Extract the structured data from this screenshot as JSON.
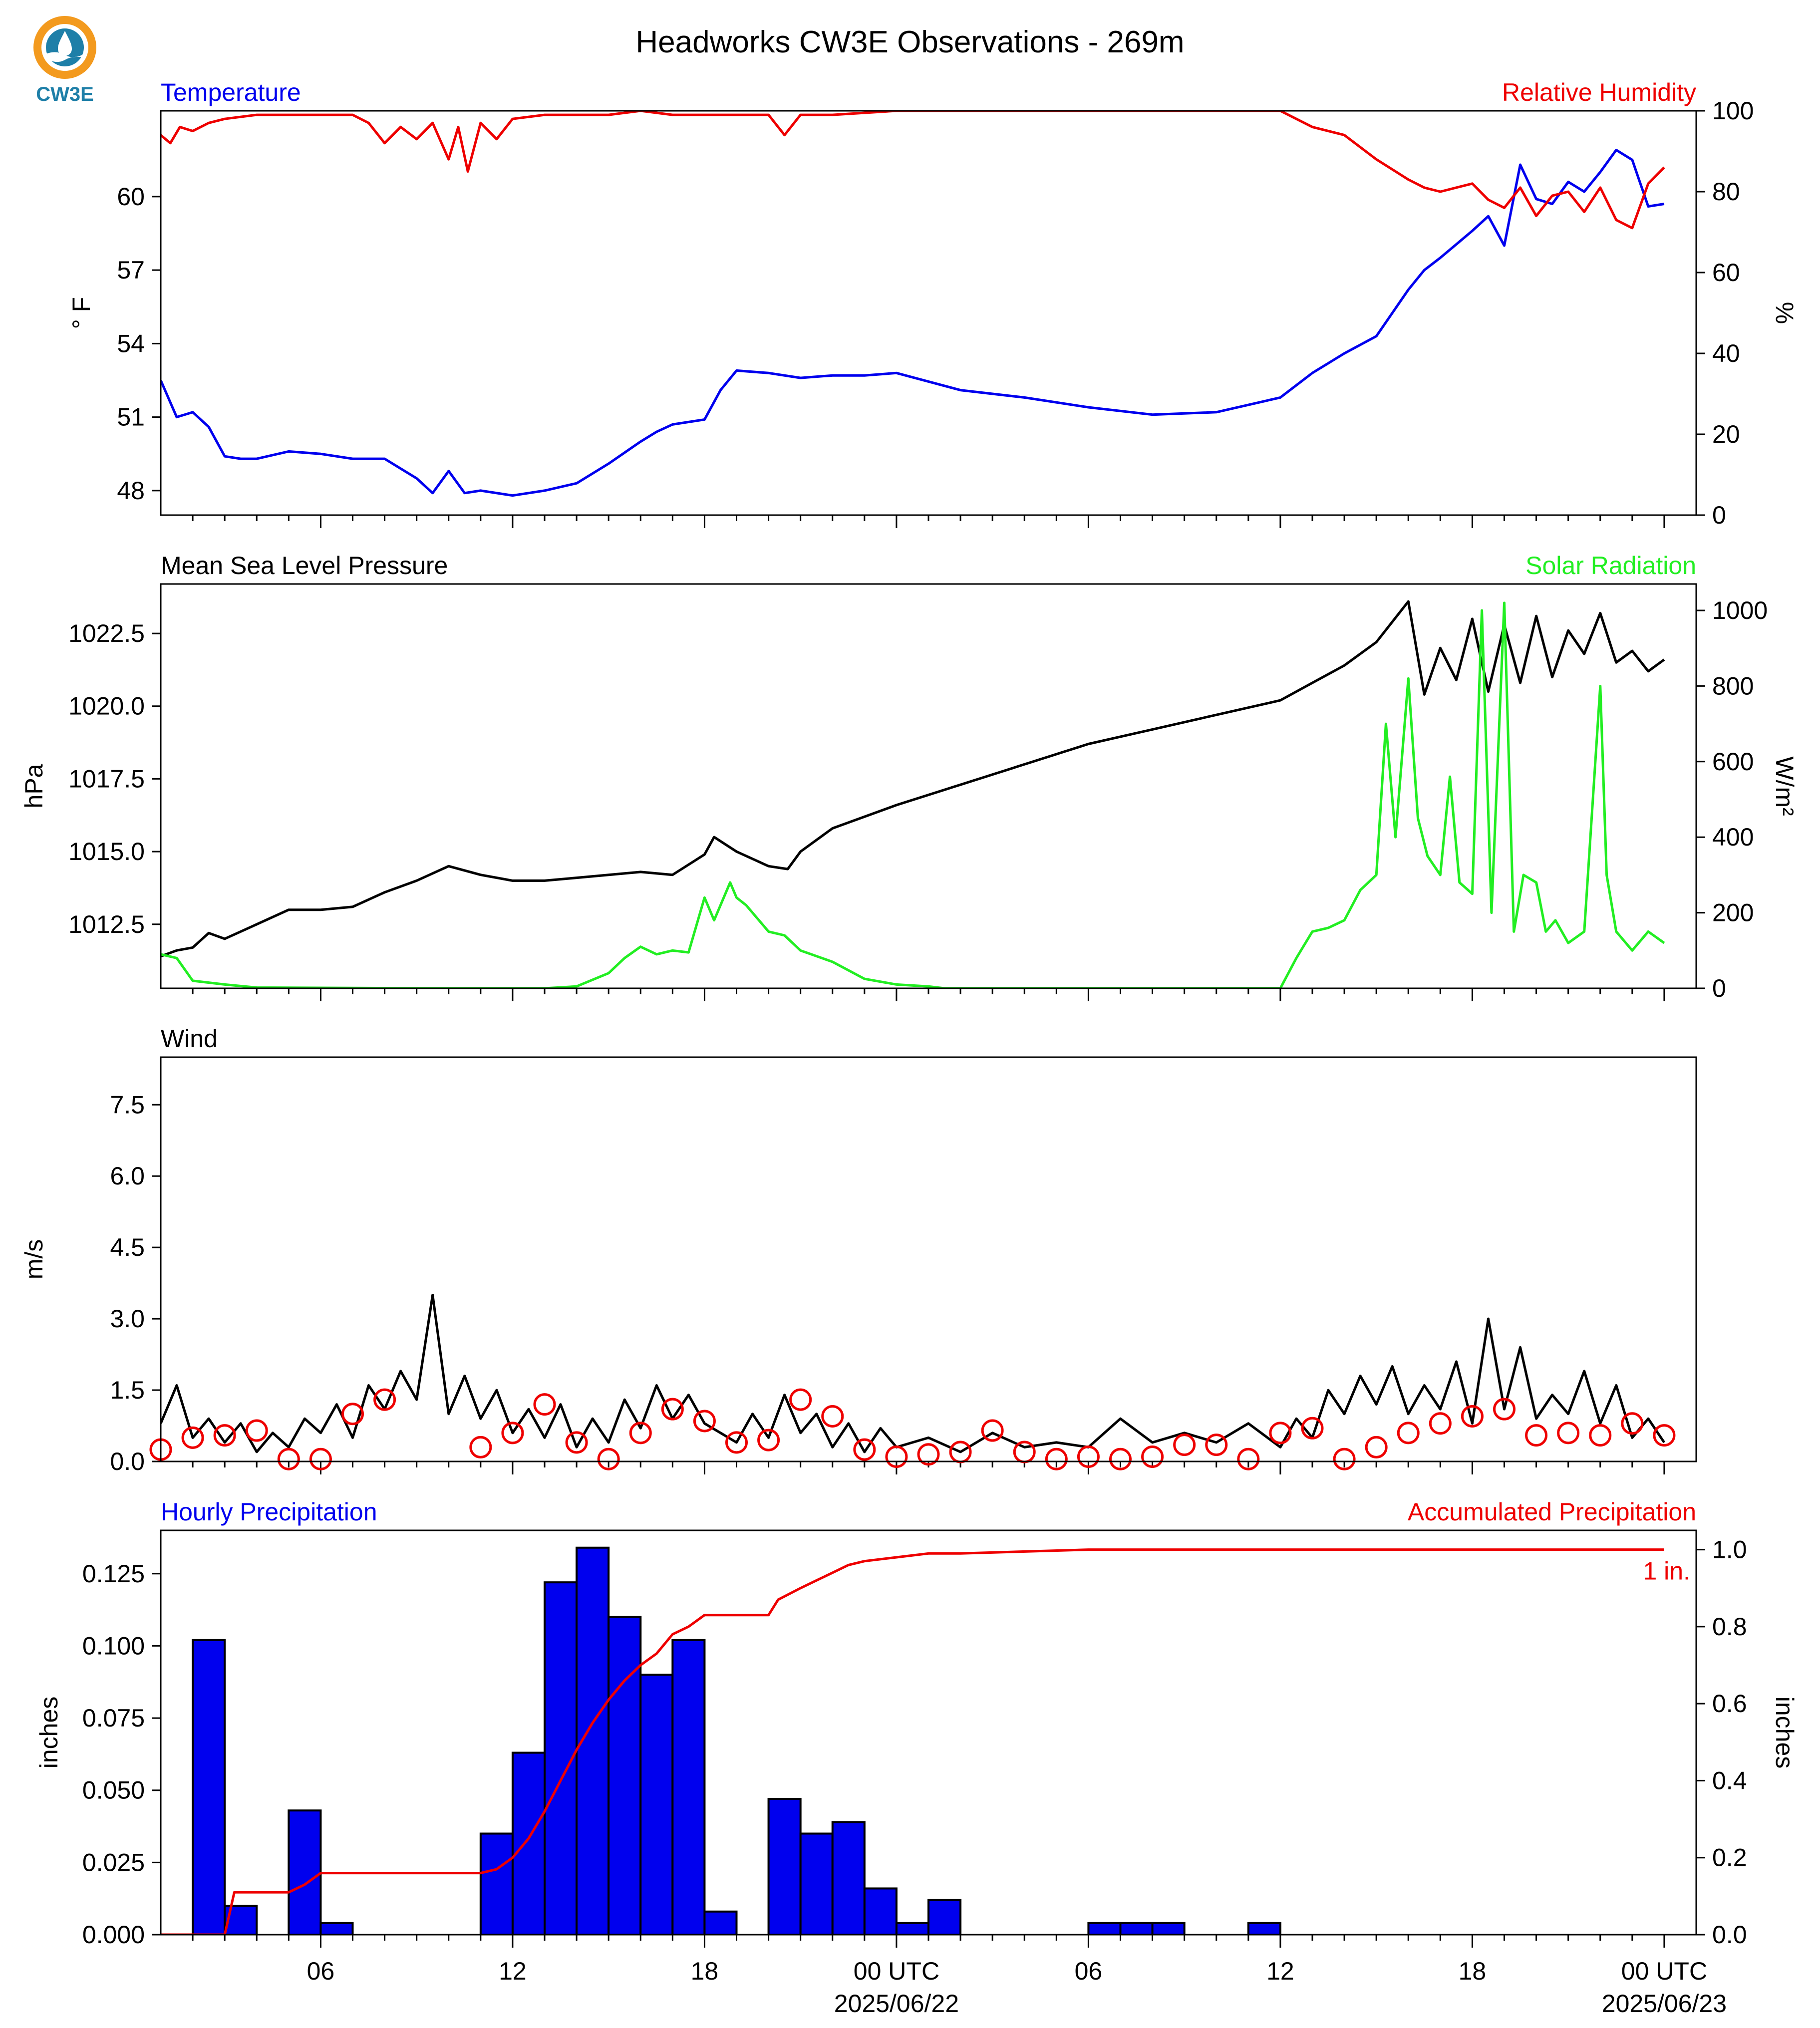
{
  "title": "Headworks CW3E Observations - 269m",
  "logo_text": "CW3E",
  "colors": {
    "temperature": "#0000ee",
    "humidity": "#ee0000",
    "pressure": "#000000",
    "solar": "#22ee22",
    "wind": "#000000",
    "wind_marker": "#ee0000",
    "precip_bar": "#0000ee",
    "accum": "#ee0000",
    "logo_orange": "#f39a1e",
    "logo_teal": "#1e7fa8"
  },
  "x_ticks": {
    "label_hours": [
      6,
      12,
      18,
      24,
      30,
      36,
      42,
      48
    ],
    "labels": [
      "06",
      "12",
      "18",
      "00 UTC",
      "06",
      "12",
      "18",
      "00 UTC"
    ],
    "date_labels": [
      {
        "hour": 24,
        "text": "2025/06/22"
      },
      {
        "hour": 48,
        "text": "2025/06/23"
      }
    ]
  },
  "chart_data": [
    {
      "id": "temp_rh",
      "type": "line",
      "left_title": "Temperature",
      "right_title": "Relative Humidity",
      "ylabel_left": "° F",
      "ylabel_right": "%",
      "ylim_left": [
        47,
        63.5
      ],
      "yticks_left": [
        "48",
        "51",
        "54",
        "57",
        "60"
      ],
      "ytick_values_left": [
        48,
        51,
        54,
        57,
        60
      ],
      "ylim_right": [
        0,
        100
      ],
      "yticks_right": [
        "0",
        "20",
        "40",
        "60",
        "80",
        "100"
      ],
      "ytick_values_right": [
        0,
        20,
        40,
        60,
        80,
        100
      ],
      "xlim_hours": [
        1,
        49
      ],
      "series": [
        {
          "axis": "left",
          "color_key": "temperature",
          "x": [
            1,
            1.5,
            2,
            2.5,
            3,
            3.5,
            4,
            5,
            6,
            7,
            8,
            8.5,
            9,
            9.5,
            10,
            10.5,
            11,
            12,
            13,
            14,
            15,
            16,
            16.5,
            17,
            18,
            18.5,
            19,
            20,
            21,
            22,
            23,
            24,
            26,
            28,
            30,
            32,
            34,
            36,
            37,
            38,
            39,
            40,
            40.5,
            41,
            42,
            42.5,
            43,
            43.5,
            44,
            44.5,
            45,
            45.5,
            46,
            46.5,
            47,
            47.5,
            48
          ],
          "y": [
            52.5,
            51,
            51.2,
            50.6,
            49.4,
            49.3,
            49.3,
            49.6,
            49.5,
            49.3,
            49.3,
            48.9,
            48.5,
            47.9,
            48.8,
            47.9,
            48.0,
            47.8,
            48.0,
            48.3,
            49.1,
            50.0,
            50.4,
            50.7,
            50.9,
            52.1,
            52.9,
            52.8,
            52.6,
            52.7,
            52.7,
            52.8,
            52.1,
            51.8,
            51.4,
            51.1,
            51.2,
            51.8,
            52.8,
            53.6,
            54.3,
            56.2,
            57.0,
            57.5,
            58.6,
            59.2,
            58.0,
            61.3,
            59.9,
            59.7,
            60.6,
            60.2,
            61.0,
            61.9,
            61.5,
            59.6,
            59.7
          ]
        },
        {
          "axis": "right",
          "color_key": "humidity",
          "x": [
            1,
            1.3,
            1.6,
            2,
            2.5,
            3,
            4,
            5,
            6,
            7,
            7.5,
            8,
            8.5,
            9,
            9.5,
            10,
            10.3,
            10.6,
            11,
            11.5,
            12,
            13,
            14,
            15,
            16,
            17,
            18,
            19,
            20,
            20.5,
            21,
            22,
            24,
            26,
            28,
            30,
            32,
            34,
            35,
            36,
            37,
            38,
            39,
            40,
            40.5,
            41,
            42,
            42.5,
            43,
            43.5,
            44,
            44.5,
            45,
            45.5,
            46,
            46.5,
            47,
            47.5,
            48
          ],
          "y": [
            94,
            92,
            96,
            95,
            97,
            98,
            99,
            99,
            99,
            99,
            97,
            92,
            96,
            93,
            97,
            88,
            96,
            85,
            97,
            93,
            98,
            99,
            99,
            99,
            100,
            99,
            99,
            99,
            99,
            94,
            99,
            99,
            100,
            100,
            100,
            100,
            100,
            100,
            100,
            100,
            96,
            94,
            88,
            83,
            81,
            80,
            82,
            78,
            76,
            81,
            74,
            79,
            80,
            75,
            81,
            73,
            71,
            82,
            86
          ]
        }
      ]
    },
    {
      "id": "pressure_solar",
      "type": "line",
      "left_title": "Mean Sea Level Pressure",
      "right_title": "Solar Radiation",
      "ylabel_left": "hPa",
      "ylabel_right": "W/m²",
      "ylim_left": [
        1010.3,
        1024.2
      ],
      "yticks_left": [
        "1012.5",
        "1015.0",
        "1017.5",
        "1020.0",
        "1022.5"
      ],
      "ytick_values_left": [
        1012.5,
        1015.0,
        1017.5,
        1020.0,
        1022.5
      ],
      "ylim_right": [
        0,
        1070
      ],
      "yticks_right": [
        "0",
        "200",
        "400",
        "600",
        "800",
        "1000"
      ],
      "ytick_values_right": [
        0,
        200,
        400,
        600,
        800,
        1000
      ],
      "xlim_hours": [
        1,
        49
      ],
      "series": [
        {
          "axis": "left",
          "color_key": "pressure",
          "x": [
            1,
            1.5,
            2,
            2.5,
            3,
            4,
            5,
            6,
            7,
            8,
            9,
            10,
            11,
            12,
            13,
            14,
            15,
            16,
            17,
            18,
            18.3,
            19,
            20,
            20.6,
            21,
            22,
            24,
            26,
            28,
            30,
            32,
            34,
            36,
            37,
            38,
            39,
            40,
            40.5,
            41,
            41.5,
            42,
            42.5,
            43,
            43.5,
            44,
            44.5,
            45,
            45.5,
            46,
            46.5,
            47,
            47.5,
            48
          ],
          "y": [
            1011.4,
            1011.6,
            1011.7,
            1012.2,
            1012.0,
            1012.5,
            1013.0,
            1013.0,
            1013.1,
            1013.6,
            1014.0,
            1014.5,
            1014.2,
            1014.0,
            1014.0,
            1014.1,
            1014.2,
            1014.3,
            1014.2,
            1014.9,
            1015.5,
            1015.0,
            1014.5,
            1014.4,
            1015.0,
            1015.8,
            1016.6,
            1017.3,
            1018.0,
            1018.7,
            1019.2,
            1019.7,
            1020.2,
            1020.8,
            1021.4,
            1022.2,
            1023.6,
            1020.4,
            1022.0,
            1020.9,
            1023.0,
            1020.5,
            1022.8,
            1020.8,
            1023.1,
            1021.0,
            1022.6,
            1021.8,
            1023.2,
            1021.5,
            1021.9,
            1021.2,
            1021.6
          ]
        },
        {
          "axis": "right",
          "color_key": "solar",
          "x": [
            1,
            1.5,
            2,
            3,
            4,
            10,
            13,
            14,
            15,
            15.5,
            16,
            16.5,
            17,
            17.5,
            18,
            18.3,
            18.8,
            19,
            19.3,
            20,
            20.5,
            21,
            22,
            23,
            24,
            25,
            25.5,
            26,
            27,
            36,
            36.5,
            37,
            37.5,
            38,
            38.5,
            39,
            39.3,
            39.6,
            40,
            40.3,
            40.6,
            41,
            41.3,
            41.6,
            42,
            42.3,
            42.6,
            43,
            43.3,
            43.6,
            44,
            44.3,
            44.6,
            45,
            45.5,
            46,
            46.2,
            46.5,
            47,
            47.5,
            48
          ],
          "y": [
            90,
            80,
            20,
            10,
            2,
            0,
            0,
            5,
            40,
            80,
            110,
            90,
            100,
            95,
            240,
            180,
            280,
            240,
            220,
            150,
            140,
            100,
            70,
            25,
            10,
            5,
            0,
            0,
            0,
            0,
            80,
            150,
            160,
            180,
            260,
            300,
            700,
            400,
            820,
            450,
            350,
            300,
            560,
            280,
            250,
            1000,
            200,
            1020,
            150,
            300,
            280,
            150,
            180,
            120,
            150,
            800,
            300,
            150,
            100,
            150,
            120
          ]
        }
      ]
    },
    {
      "id": "wind",
      "type": "line",
      "left_title": "Wind",
      "ylabel_left": "m/s",
      "ylim_left": [
        0,
        8.5
      ],
      "yticks_left": [
        "0.0",
        "1.5",
        "3.0",
        "4.5",
        "6.0",
        "7.5"
      ],
      "ytick_values_left": [
        0,
        1.5,
        3.0,
        4.5,
        6.0,
        7.5
      ],
      "xlim_hours": [
        1,
        49
      ],
      "series": [
        {
          "axis": "left",
          "color_key": "wind",
          "x": [
            1,
            1.5,
            2,
            2.5,
            3,
            3.5,
            4,
            4.5,
            5,
            5.5,
            6,
            6.5,
            7,
            7.5,
            8,
            8.5,
            9,
            9.5,
            10,
            10.5,
            11,
            11.5,
            12,
            12.5,
            13,
            13.5,
            14,
            14.5,
            15,
            15.5,
            16,
            16.5,
            17,
            17.5,
            18,
            18.5,
            19,
            19.5,
            20,
            20.5,
            21,
            21.5,
            22,
            22.5,
            23,
            23.5,
            24,
            25,
            26,
            27,
            28,
            29,
            30,
            31,
            32,
            33,
            34,
            35,
            36,
            36.5,
            37,
            37.5,
            38,
            38.5,
            39,
            39.5,
            40,
            40.5,
            41,
            41.5,
            42,
            42.5,
            43,
            43.5,
            44,
            44.5,
            45,
            45.5,
            46,
            46.5,
            47,
            47.5,
            48
          ],
          "y": [
            0.8,
            1.6,
            0.5,
            0.9,
            0.4,
            0.8,
            0.2,
            0.6,
            0.3,
            0.9,
            0.6,
            1.2,
            0.5,
            1.6,
            1.1,
            1.9,
            1.3,
            3.5,
            1.0,
            1.8,
            0.9,
            1.5,
            0.6,
            1.1,
            0.5,
            1.2,
            0.3,
            0.9,
            0.4,
            1.3,
            0.7,
            1.6,
            0.9,
            1.4,
            0.8,
            0.6,
            0.4,
            1.0,
            0.5,
            1.4,
            0.6,
            1.0,
            0.3,
            0.8,
            0.2,
            0.7,
            0.3,
            0.5,
            0.2,
            0.6,
            0.3,
            0.4,
            0.3,
            0.9,
            0.4,
            0.6,
            0.4,
            0.8,
            0.3,
            0.9,
            0.5,
            1.5,
            1.0,
            1.8,
            1.2,
            2.0,
            1.0,
            1.6,
            1.1,
            2.1,
            0.8,
            3.0,
            1.1,
            2.4,
            0.9,
            1.4,
            1.0,
            1.9,
            0.8,
            1.6,
            0.5,
            0.9,
            0.4
          ]
        }
      ],
      "markers_x": [
        1,
        2,
        3,
        4,
        5,
        6,
        7,
        8,
        11,
        12,
        13,
        14,
        15,
        16,
        17,
        18,
        19,
        20,
        21,
        22,
        23,
        24,
        25,
        26,
        27,
        28,
        29,
        30,
        31,
        32,
        33,
        34,
        35,
        36,
        37,
        38,
        39,
        40,
        41,
        42,
        43,
        44,
        45,
        46,
        47,
        48
      ],
      "markers_y": [
        0.25,
        0.5,
        0.55,
        0.65,
        0.05,
        0.05,
        1.0,
        1.3,
        0.3,
        0.6,
        1.2,
        0.4,
        0.05,
        0.6,
        1.1,
        0.85,
        0.4,
        0.45,
        1.3,
        0.95,
        0.25,
        0.1,
        0.15,
        0.2,
        0.65,
        0.2,
        0.05,
        0.1,
        0.05,
        0.1,
        0.35,
        0.35,
        0.05,
        0.6,
        0.7,
        0.05,
        0.3,
        0.6,
        0.8,
        0.95,
        1.1,
        0.55,
        0.6,
        0.55,
        0.8,
        0.55
      ]
    },
    {
      "id": "precip",
      "type": "bar",
      "left_title": "Hourly Precipitation",
      "right_title": "Accumulated Precipitation",
      "annotation": "1 in.",
      "ylabel_left": "inches",
      "ylabel_right": "inches",
      "ylim_left": [
        0,
        0.14
      ],
      "yticks_left": [
        "0.000",
        "0.025",
        "0.050",
        "0.075",
        "0.100",
        "0.125"
      ],
      "ytick_values_left": [
        0,
        0.025,
        0.05,
        0.075,
        0.1,
        0.125
      ],
      "ylim_right": [
        0,
        1.05
      ],
      "yticks_right": [
        "0.0",
        "0.2",
        "0.4",
        "0.6",
        "0.8",
        "1.0"
      ],
      "ytick_values_right": [
        0,
        0.2,
        0.4,
        0.6,
        0.8,
        1.0
      ],
      "xlim_hours": [
        1,
        49
      ],
      "bars_start_hour": [
        2,
        3,
        5,
        6,
        11,
        12,
        13,
        14,
        15,
        16,
        17,
        18,
        20,
        21,
        22,
        23,
        24,
        25,
        30,
        31,
        32,
        35
      ],
      "bars_value": [
        0.102,
        0.01,
        0.043,
        0.004,
        0.035,
        0.063,
        0.122,
        0.134,
        0.11,
        0.09,
        0.102,
        0.008,
        0.047,
        0.035,
        0.039,
        0.016,
        0.004,
        0.012,
        0.004,
        0.004,
        0.004,
        0.004
      ],
      "series": [
        {
          "axis": "right",
          "color_key": "accum",
          "x": [
            1,
            2.5,
            3,
            3.3,
            5,
            5.5,
            6,
            11,
            11.5,
            12,
            12.5,
            13,
            13.5,
            14,
            14.5,
            15,
            15.5,
            16,
            16.5,
            17,
            17.5,
            18,
            18.3,
            20,
            20.3,
            21,
            21.5,
            22,
            22.5,
            23,
            24,
            25,
            26,
            30,
            35,
            48
          ],
          "y": [
            0,
            0,
            0,
            0.11,
            0.11,
            0.13,
            0.16,
            0.16,
            0.17,
            0.2,
            0.25,
            0.32,
            0.4,
            0.48,
            0.55,
            0.61,
            0.66,
            0.7,
            0.73,
            0.78,
            0.8,
            0.83,
            0.83,
            0.83,
            0.87,
            0.9,
            0.92,
            0.94,
            0.96,
            0.97,
            0.98,
            0.99,
            0.99,
            1.0,
            1.0,
            1.0
          ]
        }
      ]
    }
  ]
}
